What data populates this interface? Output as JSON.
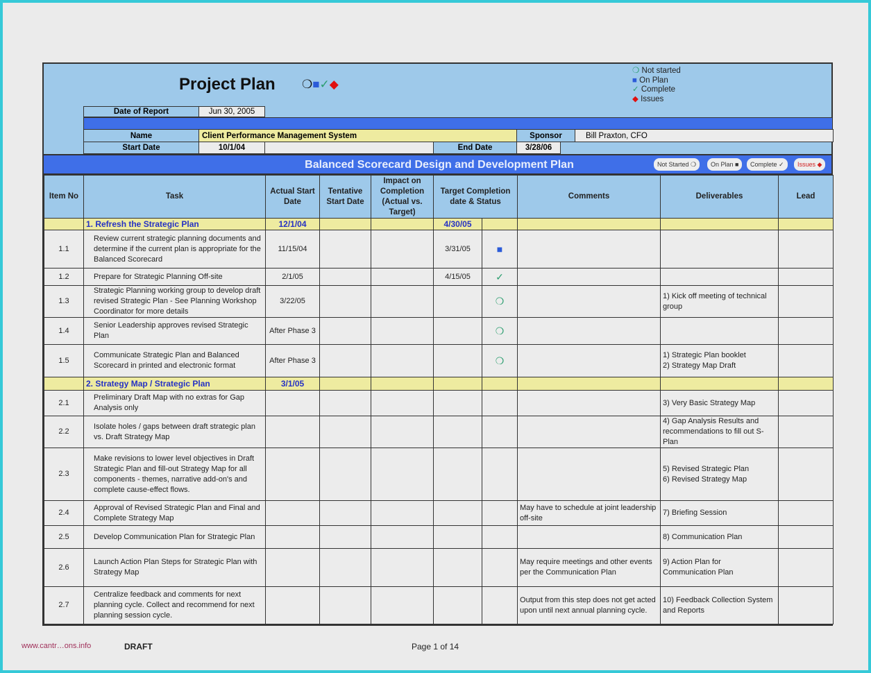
{
  "header": {
    "title": "Project Plan",
    "title_icons": [
      "circle-icon",
      "square-icon",
      "check-icon",
      "diamond-icon"
    ]
  },
  "legend": [
    {
      "icon": "not-started",
      "symbol": "❍",
      "label": "Not started"
    },
    {
      "icon": "on-plan",
      "symbol": "■",
      "label": "On Plan"
    },
    {
      "icon": "complete",
      "symbol": "✓",
      "label": "Complete"
    },
    {
      "icon": "issues",
      "symbol": "◆",
      "label": "Issues"
    }
  ],
  "info": {
    "date_of_report_label": "Date of Report",
    "date_of_report": "Jun 30, 2005",
    "name_label": "Name",
    "name": "Client Performance Management System",
    "sponsor_label": "Sponsor",
    "sponsor": "Bill Praxton, CFO",
    "start_date_label": "Start Date",
    "start_date": "10/1/04",
    "end_date_label": "End Date",
    "end_date": "3/28/06"
  },
  "banner": {
    "title": "Balanced Scorecard Design and Development Plan",
    "pills": [
      "Not Started ❍",
      "On Plan ■",
      "Complete ✓",
      "Issues ◆"
    ]
  },
  "columns": [
    "Item No",
    "Task",
    "Actual Start Date",
    "Tentative Start Date",
    "Impact on Completion (Actual vs. Target)",
    "Target Completion date & Status",
    "Comments",
    "Deliverables",
    "Lead"
  ],
  "colors": {
    "header_blue": "#9ec9ea",
    "banner_blue": "#3f6fe8",
    "section_yellow": "#eeeba0",
    "frame": "#36c9d8"
  },
  "rows": [
    {
      "type": "section",
      "task": "1. Refresh the Strategic Plan",
      "actual": "12/1/04",
      "target": "4/30/05"
    },
    {
      "no": "1.1",
      "task": "Review current strategic planning documents and determine if the current plan is appropriate for the Balanced Scorecard",
      "actual": "11/15/04",
      "target": "3/31/05",
      "status": "on-plan",
      "symbol": "■"
    },
    {
      "no": "1.2",
      "task": "Prepare for Strategic Planning Off-site",
      "actual": "2/1/05",
      "target": "4/15/05",
      "status": "complete",
      "symbol": "✓"
    },
    {
      "no": "1.3",
      "task": "Strategic Planning working group to develop draft revised Strategic Plan - See Planning Workshop Coordinator for more details",
      "actual": "3/22/05",
      "status": "not-started",
      "symbol": "❍",
      "deliverables": "1) Kick off meeting of technical group"
    },
    {
      "no": "1.4",
      "task": "Senior Leadership approves revised Strategic Plan",
      "actual": "After Phase 3",
      "status": "not-started",
      "symbol": "❍"
    },
    {
      "no": "1.5",
      "task": "Communicate Strategic Plan and Balanced Scorecard in printed and electronic format",
      "actual": "After Phase 3",
      "status": "not-started",
      "symbol": "❍",
      "deliverables": "1) Strategic Plan booklet\n2) Strategy Map Draft"
    },
    {
      "type": "section",
      "task": "2. Strategy Map / Strategic Plan",
      "actual": "3/1/05"
    },
    {
      "no": "2.1",
      "task": "Preliminary Draft Map with no extras for Gap Analysis only",
      "deliverables": "3) Very Basic Strategy Map"
    },
    {
      "no": "2.2",
      "task": "Isolate holes / gaps between draft strategic plan vs. Draft Strategy Map",
      "deliverables": "4) Gap Analysis Results and recommendations to fill out S-Plan"
    },
    {
      "no": "2.3",
      "task": "Make revisions to lower level objectives in Draft Strategic Plan and fill-out Strategy Map for all components - themes, narrative add-on's and complete cause-effect flows.",
      "deliverables": "5) Revised Strategic Plan\n6) Revised Strategy Map"
    },
    {
      "no": "2.4",
      "task": "Approval of Revised Strategic Plan and Final and Complete Strategy Map",
      "comments": "May have to schedule at joint leadership off-site",
      "deliverables": "7) Briefing Session"
    },
    {
      "no": "2.5",
      "task": "Develop Communication Plan for Strategic Plan",
      "deliverables": "8) Communication Plan"
    },
    {
      "no": "2.6",
      "task": "Launch Action Plan Steps for Strategic Plan with Strategy Map",
      "comments": "May require meetings and other events per the Communication Plan",
      "deliverables": "9) Action Plan for Communication Plan"
    },
    {
      "no": "2.7",
      "task": "Centralize feedback and comments for next planning cycle. Collect and recommend for next planning session cycle.",
      "comments": "Output from this step does not get acted upon until next annual planning cycle.",
      "deliverables": "10) Feedback Collection System and Reports"
    }
  ],
  "footer": {
    "watermark": "www.cantr…ons.info",
    "draft": "DRAFT",
    "page": "Page 1 of 14"
  }
}
